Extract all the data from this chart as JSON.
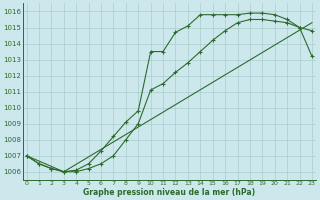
{
  "title": "Graphe pression niveau de la mer (hPa)",
  "background_color": "#cce8ec",
  "grid_color": "#aacccc",
  "line_color": "#2d6a2d",
  "xlim": [
    -0.3,
    23.3
  ],
  "ylim": [
    1005.5,
    1016.5
  ],
  "yticks": [
    1006,
    1007,
    1008,
    1009,
    1010,
    1011,
    1012,
    1013,
    1014,
    1015,
    1016
  ],
  "xticks": [
    0,
    1,
    2,
    3,
    4,
    5,
    6,
    7,
    8,
    9,
    10,
    11,
    12,
    13,
    14,
    15,
    16,
    17,
    18,
    19,
    20,
    21,
    22,
    23
  ],
  "series1_x": [
    0,
    1,
    2,
    3,
    4,
    5,
    6,
    7,
    8,
    9,
    10,
    11,
    12,
    13,
    14,
    15,
    16,
    17,
    18,
    19,
    20,
    21,
    22,
    23
  ],
  "series1_y": [
    1007.0,
    1006.5,
    1006.2,
    1006.0,
    1006.1,
    1006.5,
    1007.3,
    1008.2,
    1009.1,
    1009.8,
    1013.5,
    1013.5,
    1014.7,
    1015.1,
    1015.8,
    1015.8,
    1015.8,
    1015.8,
    1015.9,
    1015.9,
    1015.8,
    1015.5,
    1015.0,
    1014.8
  ],
  "series2_x": [
    0,
    1,
    2,
    3,
    4,
    5,
    6,
    7,
    8,
    9,
    10,
    11,
    12,
    13,
    14,
    15,
    16,
    17,
    18,
    19,
    20,
    21,
    22,
    23
  ],
  "series2_y": [
    1007.0,
    1006.5,
    1006.2,
    1006.0,
    1006.0,
    1006.2,
    1006.5,
    1007.0,
    1008.0,
    1009.0,
    1011.1,
    1011.5,
    1012.2,
    1012.8,
    1013.5,
    1014.2,
    1014.8,
    1015.3,
    1015.5,
    1015.5,
    1015.4,
    1015.3,
    1015.0,
    1013.2
  ],
  "series3_x": [
    0,
    3,
    23
  ],
  "series3_y": [
    1007.0,
    1006.0,
    1015.3
  ]
}
